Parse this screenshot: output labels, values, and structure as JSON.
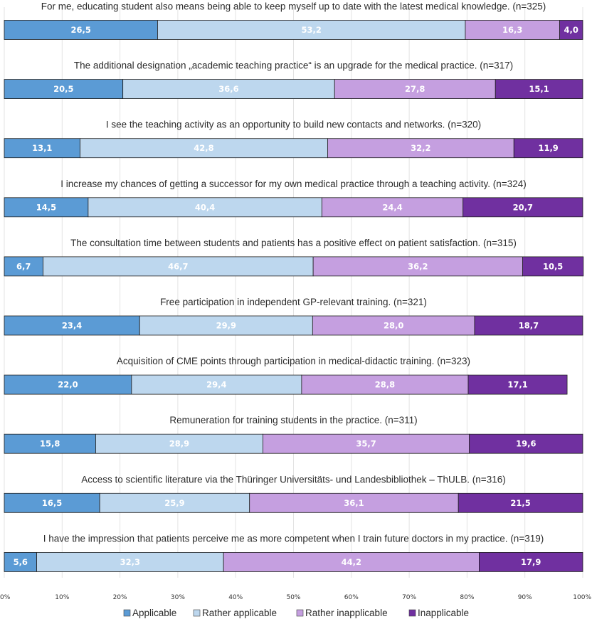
{
  "chart_data": {
    "type": "bar",
    "orientation": "horizontal",
    "stacked": true,
    "percent_stacked": true,
    "xlim": [
      0,
      100
    ],
    "x_ticks": [
      "0%",
      "10%",
      "20%",
      "30%",
      "40%",
      "50%",
      "60%",
      "70%",
      "80%",
      "90%",
      "100%"
    ],
    "grid": "vertical",
    "legend_position": "bottom",
    "series": [
      {
        "name": "Applicable",
        "color": "#5b9bd5"
      },
      {
        "name": "Rather applicable",
        "color": "#bdd7ee"
      },
      {
        "name": "Rather inapplicable",
        "color": "#c59fe0"
      },
      {
        "name": "Inapplicable",
        "color": "#7030a0"
      }
    ],
    "categories": [
      {
        "title": "For me, educating student also means being able to keep myself up to date with the latest medical knowledge. (n=325)",
        "values": [
          26.5,
          53.2,
          16.3,
          4.0
        ],
        "labels": [
          "26,5",
          "53,2",
          "16,3",
          "4,0"
        ]
      },
      {
        "title": "The additional designation „academic teaching practice“ is an upgrade for the medical practice. (n=317)",
        "values": [
          20.5,
          36.6,
          27.8,
          15.1
        ],
        "labels": [
          "20,5",
          "36,6",
          "27,8",
          "15,1"
        ]
      },
      {
        "title": "I see the teaching activity as an opportunity to build new contacts and networks. (n=320)",
        "values": [
          13.1,
          42.8,
          32.2,
          11.9
        ],
        "labels": [
          "13,1",
          "42,8",
          "32,2",
          "11,9"
        ]
      },
      {
        "title": "I increase my chances of getting a successor for my own medical practice through a teaching activity. (n=324)",
        "values": [
          14.5,
          40.4,
          24.4,
          20.7
        ],
        "labels": [
          "14,5",
          "40,4",
          "24,4",
          "20,7"
        ]
      },
      {
        "title": "The consultation time between students and patients has a positive effect on patient satisfaction. (n=315)",
        "values": [
          6.7,
          46.7,
          36.2,
          10.5
        ],
        "labels": [
          "6,7",
          "46,7",
          "36,2",
          "10,5"
        ]
      },
      {
        "title": "Free participation in independent GP-relevant training. (n=321)",
        "values": [
          23.4,
          29.9,
          28.0,
          18.7
        ],
        "labels": [
          "23,4",
          "29,9",
          "28,0",
          "18,7"
        ]
      },
      {
        "title": "Acquisition of CME points through participation in medical-didactic training. (n=323)",
        "values": [
          22.0,
          29.4,
          28.8,
          17.1
        ],
        "labels": [
          "22,0",
          "29,4",
          "28,8",
          "17,1"
        ]
      },
      {
        "title": "Remuneration for training students in the practice. (n=311)",
        "values": [
          15.8,
          28.9,
          35.7,
          19.6
        ],
        "labels": [
          "15,8",
          "28,9",
          "35,7",
          "19,6"
        ]
      },
      {
        "title": "Access to scientific literature via the Thüringer Universitäts- und Landesbibliothek – ThULB. (n=316)",
        "values": [
          16.5,
          25.9,
          36.1,
          21.5
        ],
        "labels": [
          "16,5",
          "25,9",
          "36,1",
          "21,5"
        ]
      },
      {
        "title": "I have the impression that patients perceive me as more competent when I train future doctors in my practice. (n=319)",
        "values": [
          5.6,
          32.3,
          44.2,
          17.9
        ],
        "labels": [
          "5,6",
          "32,3",
          "44,2",
          "17,9"
        ]
      }
    ]
  }
}
